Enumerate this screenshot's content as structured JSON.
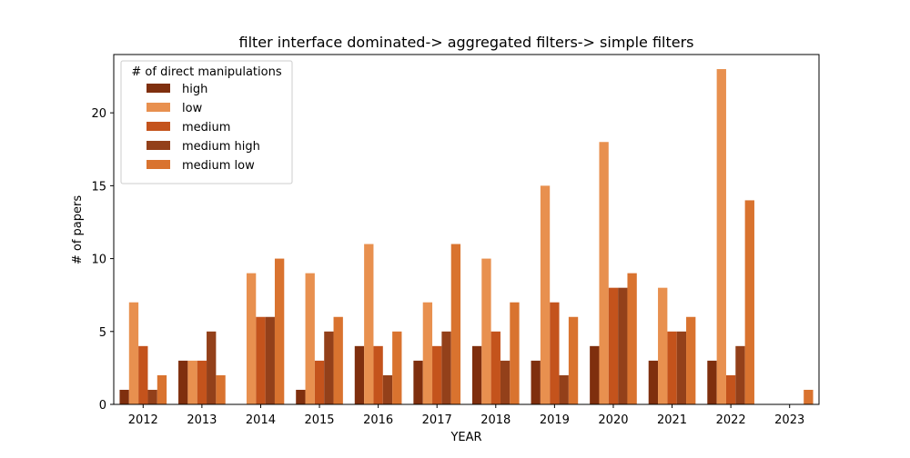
{
  "chart_data": {
    "type": "bar",
    "title": "filter interface dominated-> aggregated filters-> simple filters",
    "xlabel": "YEAR",
    "ylabel": "# of papers",
    "categories": [
      "2012",
      "2013",
      "2014",
      "2015",
      "2016",
      "2017",
      "2018",
      "2019",
      "2020",
      "2021",
      "2022",
      "2023"
    ],
    "ylim": [
      0,
      24
    ],
    "yticks": [
      0,
      5,
      10,
      15,
      20
    ],
    "grid": false,
    "legend": {
      "title": "# of direct manipulations",
      "placement": "top-left"
    },
    "series": [
      {
        "name": "high",
        "color": "#7f2f0e",
        "values": [
          1,
          3,
          0,
          1,
          4,
          3,
          4,
          3,
          4,
          3,
          3,
          0
        ]
      },
      {
        "name": "low",
        "color": "#e8904f",
        "values": [
          7,
          3,
          9,
          9,
          11,
          7,
          10,
          15,
          18,
          8,
          23,
          0
        ]
      },
      {
        "name": "medium",
        "color": "#c4531c",
        "values": [
          4,
          3,
          6,
          3,
          4,
          4,
          5,
          7,
          8,
          5,
          2,
          0
        ]
      },
      {
        "name": "medium high",
        "color": "#93401a",
        "values": [
          1,
          5,
          6,
          5,
          2,
          5,
          3,
          2,
          8,
          5,
          4,
          0
        ]
      },
      {
        "name": "medium low",
        "color": "#d9732f",
        "values": [
          2,
          2,
          10,
          6,
          5,
          11,
          7,
          6,
          9,
          6,
          14,
          1
        ]
      }
    ]
  }
}
